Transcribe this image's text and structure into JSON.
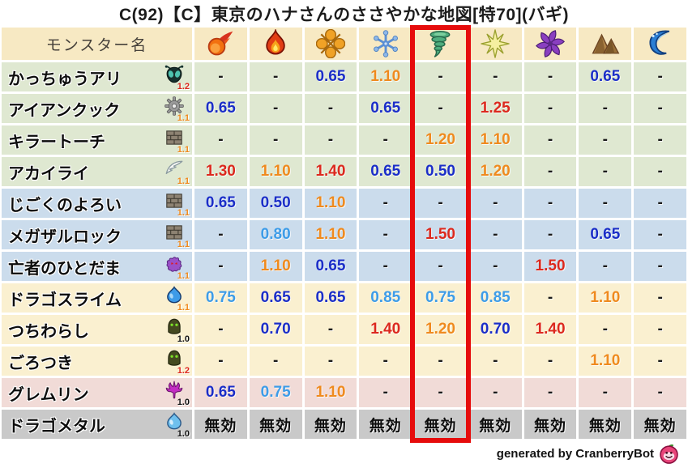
{
  "title": "C(92)【C】東京のハナさんのささやかな地図[特70](バギ)",
  "table": {
    "name_header": "モンスター名",
    "elements": [
      {
        "icon": "fireball-icon"
      },
      {
        "icon": "flame-icon"
      },
      {
        "icon": "explosion-icon"
      },
      {
        "icon": "ice-icon"
      },
      {
        "icon": "wind-icon"
      },
      {
        "icon": "light-icon"
      },
      {
        "icon": "dark-icon"
      },
      {
        "icon": "earth-icon"
      },
      {
        "icon": "water-icon"
      }
    ],
    "highlight_column": 4,
    "rows": [
      {
        "name": "かっちゅうアリ",
        "icon": "bug-icon",
        "modifier": "1.2",
        "group": "green",
        "values": [
          "-",
          "-",
          "0.65",
          "1.10",
          "-",
          "-",
          "-",
          "0.65",
          "-"
        ]
      },
      {
        "name": "アイアンクック",
        "icon": "gear-icon",
        "modifier": "1.1",
        "group": "green",
        "values": [
          "0.65",
          "-",
          "-",
          "0.65",
          "-",
          "1.25",
          "-",
          "-",
          "-"
        ]
      },
      {
        "name": "キラートーチ",
        "icon": "brick-icon",
        "modifier": "1.1",
        "group": "green",
        "values": [
          "-",
          "-",
          "-",
          "-",
          "1.20",
          "1.10",
          "-",
          "-",
          "-"
        ]
      },
      {
        "name": "アカイライ",
        "icon": "wing-icon",
        "modifier": "1.1",
        "group": "green",
        "values": [
          "1.30",
          "1.10",
          "1.40",
          "0.65",
          "0.50",
          "1.20",
          "-",
          "-",
          "-"
        ]
      },
      {
        "name": "じごくのよろい",
        "icon": "brick-icon",
        "modifier": "1.1",
        "group": "blue",
        "values": [
          "0.65",
          "0.50",
          "1.10",
          "-",
          "-",
          "-",
          "-",
          "-",
          "-"
        ]
      },
      {
        "name": "メガザルロック",
        "icon": "brick-icon",
        "modifier": "1.1",
        "group": "blue",
        "values": [
          "-",
          "0.80",
          "1.10",
          "-",
          "1.50",
          "-",
          "-",
          "0.65",
          "-"
        ]
      },
      {
        "name": "亡者のひとだま",
        "icon": "ghost-icon",
        "modifier": "1.1",
        "group": "blue",
        "values": [
          "-",
          "1.10",
          "0.65",
          "-",
          "-",
          "-",
          "1.50",
          "-",
          "-"
        ]
      },
      {
        "name": "ドラゴスライム",
        "icon": "slime-icon",
        "modifier": "1.1",
        "group": "cream",
        "values": [
          "0.75",
          "0.65",
          "0.65",
          "0.85",
          "0.75",
          "0.85",
          "-",
          "1.10",
          "-"
        ]
      },
      {
        "name": "つちわらし",
        "icon": "hood-icon",
        "modifier": "1.0",
        "group": "cream",
        "values": [
          "-",
          "0.70",
          "-",
          "1.40",
          "1.20",
          "0.70",
          "1.40",
          "-",
          "-"
        ]
      },
      {
        "name": "ごろつき",
        "icon": "hood-icon",
        "modifier": "1.2",
        "group": "cream",
        "values": [
          "-",
          "-",
          "-",
          "-",
          "-",
          "-",
          "-",
          "1.10",
          "-"
        ]
      },
      {
        "name": "グレムリン",
        "icon": "devil-icon",
        "modifier": "1.0",
        "group": "pink",
        "values": [
          "0.65",
          "0.75",
          "1.10",
          "-",
          "-",
          "-",
          "-",
          "-",
          "-"
        ]
      },
      {
        "name": "ドラゴメタル",
        "icon": "metal-slime-icon",
        "modifier": "1.0",
        "group": "gray",
        "values": [
          "無効",
          "無効",
          "無効",
          "無効",
          "無効",
          "無効",
          "無効",
          "無効",
          "無効"
        ]
      }
    ]
  },
  "footer": {
    "credit": "generated by CranberryBot",
    "icon": "cranberry-icon"
  },
  "colors": {
    "header_bg": "#f7e9c3",
    "row_green": "#dfe8d1",
    "row_blue": "#cbdcec",
    "row_cream": "#faf0d0",
    "row_pink": "#f1dbd7",
    "row_gray": "#c9c9c9",
    "value_red": "#dc291e",
    "value_orange": "#ef8a1e",
    "value_dark_blue": "#1b2ec8",
    "value_light_blue": "#3d9ce8",
    "highlight_red": "#e60c0c"
  }
}
